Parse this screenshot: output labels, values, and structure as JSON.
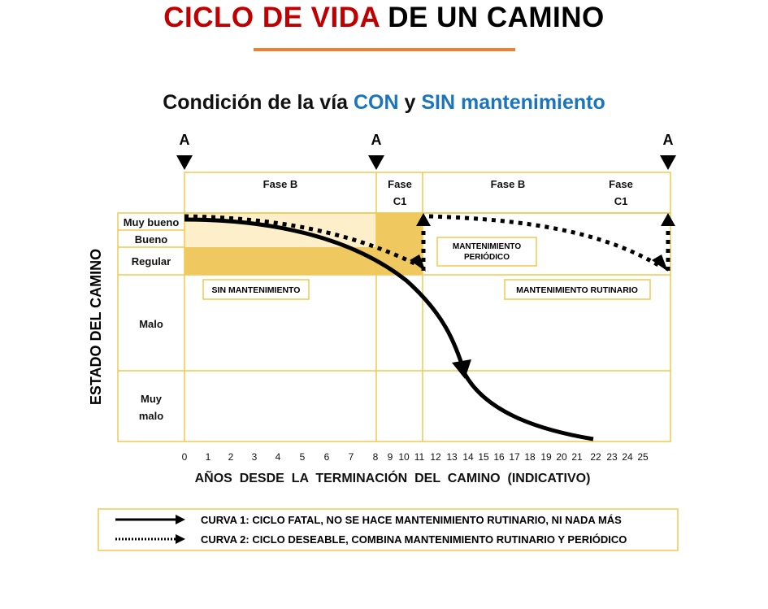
{
  "title": {
    "part1": "CICLO DE VIDA",
    "part2": " DE UN CAMINO"
  },
  "subtitle": {
    "part1": "Condición de la vía ",
    "con": "CON",
    "y": " y ",
    "sin": "SIN mantenimiento"
  },
  "markers": [
    "A",
    "A",
    "A"
  ],
  "phases": [
    {
      "label": "Fase B"
    },
    {
      "label": "Fase",
      "label2": "C1"
    },
    {
      "label": "Fase B"
    },
    {
      "label": "Fase",
      "label2": "C1"
    }
  ],
  "y_axis": {
    "title": "ESTADO DEL CAMINO",
    "levels": [
      "Muy bueno",
      "Bueno",
      "Regular",
      "Malo",
      "Muy",
      "malo"
    ]
  },
  "x_axis": {
    "title": "AÑOS  DESDE  LA  TERMINACIÓN  DEL  CAMINO  (INDICATIVO)",
    "ticks": [
      "0",
      "1",
      "2",
      "3",
      "4",
      "5",
      "6",
      "7",
      "8",
      "9",
      "10",
      "11",
      "12",
      "13",
      "14",
      "15",
      "16",
      "17",
      "18",
      "19",
      "20",
      "21",
      "22",
      "23",
      "24",
      "25"
    ]
  },
  "annotations": {
    "sin": "SIN MANTENIMIENTO",
    "periodico1": "MANTENIMIENTO",
    "periodico2": "PERIÓDICO",
    "rutinario": "MANTENIMIENTO RUTINARIO"
  },
  "legend": [
    {
      "style": "solid",
      "text": "CURVA 1: CICLO FATAL, NO SE HACE MANTENIMIENTO RUTINARIO, NI NADA MÁS"
    },
    {
      "style": "dotted",
      "text": "CURVA 2: CICLO DESEABLE, COMBINA MANTENIMIENTO RUTINARIO Y PERIÓDICO"
    }
  ],
  "colors": {
    "title_red": "#c00000",
    "accent_orange": "#f08030",
    "blue": "#1a75bc",
    "grid": "#f0c850",
    "shade_light": "#fcefc9",
    "shade_dark": "#efc860"
  }
}
